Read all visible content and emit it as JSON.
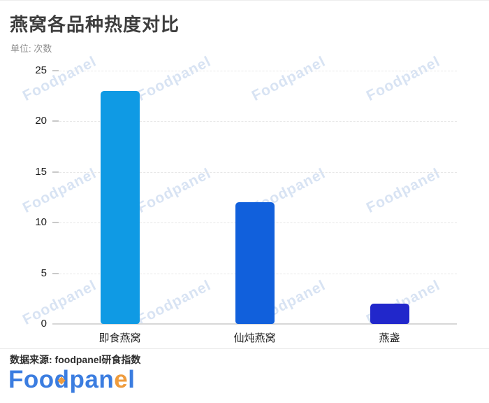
{
  "header": {
    "title": "燕窝各品种热度对比",
    "unit_label": "单位: 次数"
  },
  "chart_data": {
    "type": "bar",
    "title": "燕窝各品种热度对比",
    "unit": "次数",
    "categories": [
      "即食燕窝",
      "仙炖燕窝",
      "燕盏"
    ],
    "values": [
      23,
      12,
      2
    ],
    "bar_colors": [
      "#0f9ae4",
      "#1160dc",
      "#2127cb"
    ],
    "xlabel": "",
    "ylabel": "",
    "ylim": [
      0,
      25
    ],
    "yticks": [
      0,
      5,
      10,
      15,
      20,
      25
    ],
    "grid": "horizontal-dashed",
    "legend": "none"
  },
  "watermark": {
    "text": "Foodpanel",
    "color": "#a9c3e6"
  },
  "footer": {
    "source": "数据来源: foodpanel研食指数",
    "logo": {
      "part_foo": "Foo",
      "part_d": "d",
      "part_pan": "pan",
      "part_e": "e",
      "part_l": "l"
    },
    "logo_blue": "#3b7de0",
    "logo_orange": "#ef9c3d"
  }
}
